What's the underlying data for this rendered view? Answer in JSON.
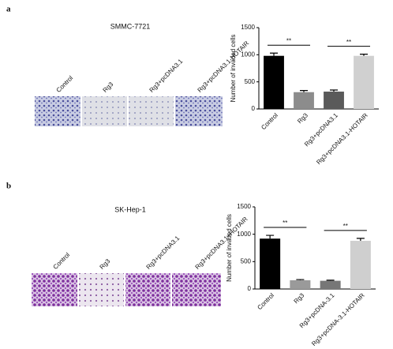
{
  "panels": [
    {
      "label": "a",
      "title": "SMMC-7721",
      "image_labels": [
        "Control",
        "Rg3",
        "Rg3+pcDNA3.1",
        "Rg3+pcDNA3.1-HOTAIR"
      ]
    },
    {
      "label": "b",
      "title": "SK-Hep-1",
      "image_labels": [
        "Control",
        "Rg3",
        "Rg3+pcDNA3.1",
        "Rg3+pcDNA3.1+HOTAIR"
      ]
    }
  ],
  "chart_data": [
    {
      "type": "bar",
      "y_label": "Number of invaded cells",
      "categories": [
        "Control",
        "Rg3",
        "Rg3+pcDNA3.1",
        "Rg3+pcDNA3.1-HOTAIR"
      ],
      "values": [
        980,
        310,
        320,
        980
      ],
      "errors": [
        50,
        30,
        30,
        30
      ],
      "colors": [
        "#000000",
        "#8c8c8c",
        "#5a5a5a",
        "#d0d0d0"
      ],
      "ylim": [
        0,
        1500
      ],
      "yticks": [
        0,
        500,
        1000,
        1500
      ],
      "annotations": [
        "**",
        "**"
      ]
    },
    {
      "type": "bar",
      "y_label": "Number of invaded cells",
      "categories": [
        "Control",
        "Rg3",
        "Rg3+pcDNA-3.1",
        "Rg3+pcDNA-3.1-HOTAIR"
      ],
      "values": [
        920,
        160,
        150,
        880
      ],
      "errors": [
        60,
        12,
        10,
        45
      ],
      "colors": [
        "#000000",
        "#9a9a9a",
        "#777777",
        "#cfcfcf"
      ],
      "ylim": [
        0,
        1500
      ],
      "yticks": [
        0,
        500,
        1000,
        1500
      ],
      "annotations": [
        "**",
        "**"
      ]
    }
  ]
}
